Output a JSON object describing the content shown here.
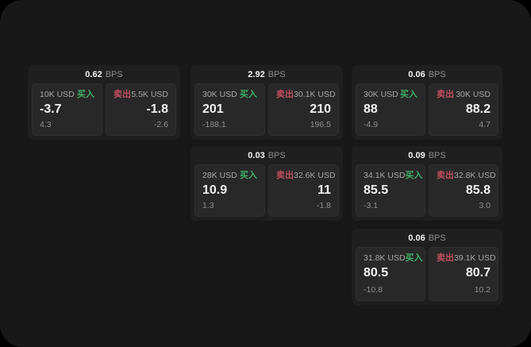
{
  "labels": {
    "bps_unit": "BPS",
    "buy": "买入",
    "sell": "卖出"
  },
  "colors": {
    "window_background": "#181818",
    "card_background": "#1f1f1f",
    "panel_background": "#282828",
    "buy_label": "#3fae68",
    "sell_label": "#bf4d60",
    "primary_text": "#f2f2f2",
    "muted_text": "#8f8f8f"
  },
  "cards": [
    {
      "bps": "0.62",
      "buy": {
        "amount": "10K USD",
        "price": "-3.7",
        "delta": "4.3"
      },
      "sell": {
        "amount": "5.5K USD",
        "price": "-1.8",
        "delta": "-2.6"
      }
    },
    {
      "bps": "2.92",
      "buy": {
        "amount": "30K USD",
        "price": "201",
        "delta": "-188.1"
      },
      "sell": {
        "amount": "30.1K USD",
        "price": "210",
        "delta": "196.5"
      }
    },
    {
      "bps": "0.06",
      "buy": {
        "amount": "30K USD",
        "price": "88",
        "delta": "-4.9"
      },
      "sell": {
        "amount": "30K USD",
        "price": "88.2",
        "delta": "4.7"
      }
    },
    {
      "bps": "0.03",
      "buy": {
        "amount": "28K USD",
        "price": "10.9",
        "delta": "1.3"
      },
      "sell": {
        "amount": "32.6K USD",
        "price": "11",
        "delta": "-1.8"
      }
    },
    {
      "bps": "0.09",
      "buy": {
        "amount": "34.1K USD",
        "price": "85.5",
        "delta": "-3.1"
      },
      "sell": {
        "amount": "32.8K USD",
        "price": "85.8",
        "delta": "3.0"
      }
    },
    {
      "bps": "0.06",
      "buy": {
        "amount": "31.8K USD",
        "price": "80.5",
        "delta": "-10.8"
      },
      "sell": {
        "amount": "39.1K USD",
        "price": "80.7",
        "delta": "10.2"
      }
    }
  ]
}
